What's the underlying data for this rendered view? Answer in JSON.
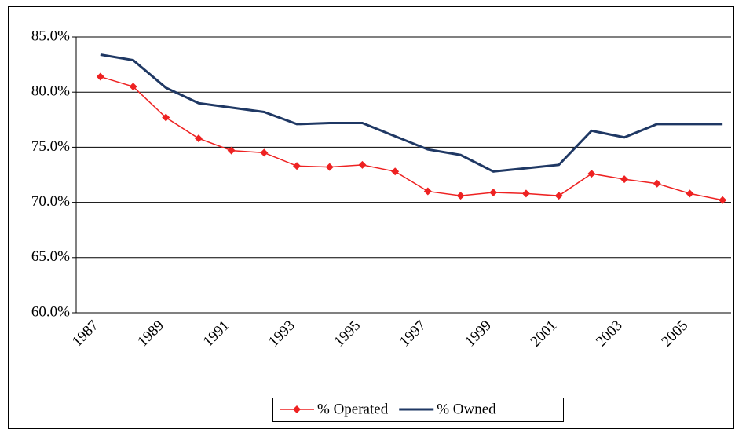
{
  "chart_data": {
    "type": "line",
    "categories": [
      "1987",
      null,
      "1989",
      null,
      "1991",
      null,
      "1993",
      null,
      "1995",
      null,
      "1997",
      null,
      "1999",
      null,
      "2001",
      null,
      "2003",
      null,
      "2005",
      null
    ],
    "series": [
      {
        "name": "% Operated",
        "color": "#ee2222",
        "marker": "diamond",
        "values": [
          81.4,
          80.5,
          77.7,
          75.8,
          74.7,
          74.5,
          73.3,
          73.2,
          73.4,
          72.8,
          71.0,
          70.6,
          70.9,
          70.8,
          70.6,
          72.6,
          72.1,
          71.7,
          70.8,
          70.2
        ]
      },
      {
        "name": "% Owned",
        "color": "#1f3864",
        "marker": "none",
        "values": [
          83.4,
          82.9,
          80.4,
          79.0,
          78.6,
          78.2,
          77.1,
          77.2,
          77.2,
          76.0,
          74.8,
          74.3,
          72.8,
          73.1,
          73.4,
          76.5,
          75.9,
          77.1,
          77.1,
          77.1
        ]
      }
    ],
    "ylim": [
      60,
      85
    ],
    "yticks": [
      {
        "value": 60,
        "label": "60.0%"
      },
      {
        "value": 65,
        "label": "65.0%"
      },
      {
        "value": 70,
        "label": "70.0%"
      },
      {
        "value": 75,
        "label": "75.0%"
      },
      {
        "value": 80,
        "label": "80.0%"
      },
      {
        "value": 85,
        "label": "85.0%"
      }
    ],
    "grid": true,
    "legend": "bottom"
  }
}
